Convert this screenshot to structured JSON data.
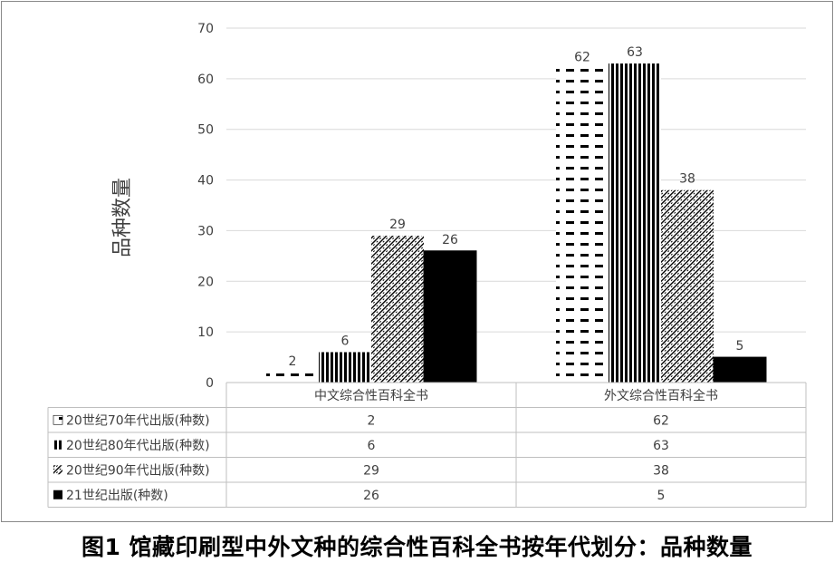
{
  "caption": "图1 馆藏印刷型中外文种的综合性百科全书按年代划分：品种数量",
  "chart_data": {
    "type": "bar",
    "ylabel": "品种数量",
    "ylim": [
      0,
      70
    ],
    "yticks": [
      0,
      10,
      20,
      30,
      40,
      50,
      60,
      70
    ],
    "gridlines": true,
    "legend": "data-table",
    "categories": [
      "中文综合性百科全书",
      "外文综合性百科全书"
    ],
    "series": [
      {
        "name": "20世纪70年代出版(种数)",
        "values": [
          2,
          62
        ],
        "pattern": "dashes"
      },
      {
        "name": "20世纪80年代出版(种数)",
        "values": [
          6,
          63
        ],
        "pattern": "vertical-stripes"
      },
      {
        "name": "20世纪90年代出版(种数)",
        "values": [
          29,
          38
        ],
        "pattern": "diagonal-hatch"
      },
      {
        "name": "21世纪出版(种数)",
        "values": [
          26,
          5
        ],
        "pattern": "solid-black"
      }
    ]
  }
}
